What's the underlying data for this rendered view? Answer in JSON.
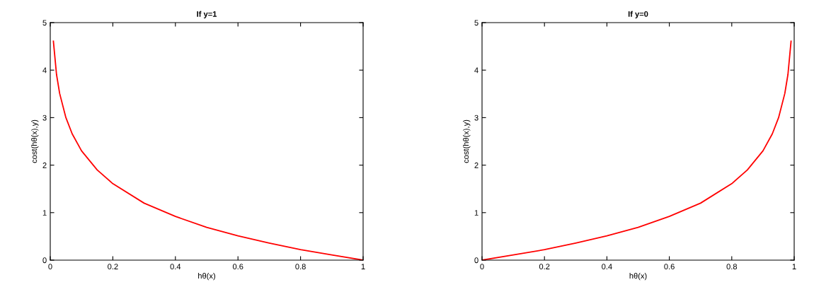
{
  "chart_data": [
    {
      "type": "line",
      "title": "If y=1",
      "xlabel": "hθ(x)",
      "ylabel": "cost(hθ(x),y)",
      "xlim": [
        0,
        1
      ],
      "ylim": [
        0,
        5
      ],
      "xticks": [
        0,
        0.2,
        0.4,
        0.6,
        0.8,
        1
      ],
      "yticks": [
        0,
        1,
        2,
        3,
        4,
        5
      ],
      "grid": false,
      "legend": false,
      "series": [
        {
          "color": "#ff0000",
          "x": [
            0.01,
            0.02,
            0.03,
            0.05,
            0.07,
            0.1,
            0.15,
            0.2,
            0.3,
            0.4,
            0.5,
            0.6,
            0.7,
            0.8,
            0.9,
            1.0
          ],
          "values": [
            4.61,
            3.91,
            3.51,
            3.0,
            2.66,
            2.3,
            1.9,
            1.61,
            1.2,
            0.92,
            0.69,
            0.51,
            0.36,
            0.22,
            0.11,
            0
          ]
        }
      ]
    },
    {
      "type": "line",
      "title": "If y=0",
      "xlabel": "hθ(x)",
      "ylabel": "cost(hθ(x),y)",
      "xlim": [
        0,
        1
      ],
      "ylim": [
        0,
        5
      ],
      "xticks": [
        0,
        0.2,
        0.4,
        0.6,
        0.8,
        1
      ],
      "yticks": [
        0,
        1,
        2,
        3,
        4,
        5
      ],
      "grid": false,
      "legend": false,
      "series": [
        {
          "color": "#ff0000",
          "x": [
            0,
            0.1,
            0.2,
            0.3,
            0.4,
            0.5,
            0.6,
            0.7,
            0.8,
            0.85,
            0.9,
            0.93,
            0.95,
            0.97,
            0.98,
            0.99
          ],
          "values": [
            0,
            0.11,
            0.22,
            0.36,
            0.51,
            0.69,
            0.92,
            1.2,
            1.61,
            1.9,
            2.3,
            2.66,
            3.0,
            3.51,
            3.91,
            4.61
          ]
        }
      ]
    }
  ]
}
